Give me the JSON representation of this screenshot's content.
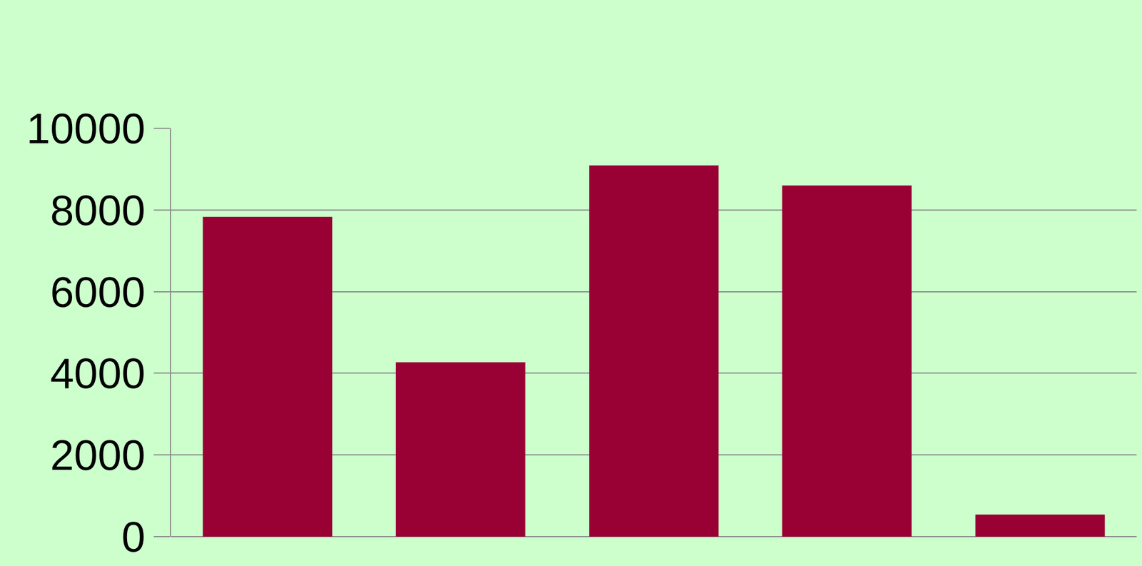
{
  "chart_data": {
    "type": "bar",
    "categories": [
      null,
      null,
      null,
      null,
      null
    ],
    "values": [
      7830,
      4270,
      9090,
      8600,
      540
    ],
    "color": "#990033",
    "ylim": [
      0,
      10000
    ],
    "yticks": [
      0,
      2000,
      4000,
      6000,
      8000,
      10000
    ],
    "grid": true,
    "tick_labels": "y"
  }
}
